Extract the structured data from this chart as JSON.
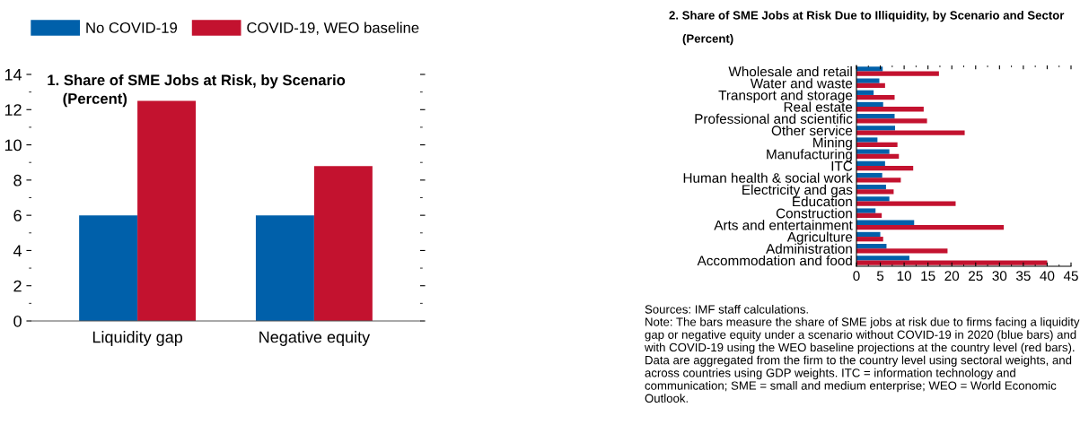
{
  "chart_data": [
    {
      "type": "bar",
      "title": "1. Share of SME Jobs at Risk, by Scenario",
      "subtitle": "(Percent)",
      "categories": [
        "Liquidity gap",
        "Negative equity"
      ],
      "series": [
        {
          "name": "No COVID-19",
          "color": "#0060aa",
          "values": [
            6.0,
            6.0
          ]
        },
        {
          "name": "COVID-19, WEO baseline",
          "color": "#c3122f",
          "values": [
            12.5,
            8.8
          ]
        }
      ],
      "ylim": [
        0,
        14
      ],
      "yticks": [
        0,
        2,
        4,
        6,
        8,
        10,
        12,
        14
      ],
      "grid": false,
      "legend": "top left"
    },
    {
      "type": "bar",
      "orientation": "horizontal",
      "title": "2. Share of SME Jobs at Risk Due to Illiquidity, by Scenario and Sector",
      "subtitle": "(Percent)",
      "categories": [
        "Wholesale and retail",
        "Water and waste",
        "Transport and storage",
        "Real estate",
        "Professional and scientific",
        "Other service",
        "Mining",
        "Manufacturing",
        "ITC",
        "Human health & social work",
        "Electricity and gas",
        "Education",
        "Construction",
        "Arts and entertainment",
        "Agriculture",
        "Administration",
        "Accommodation and food"
      ],
      "series": [
        {
          "color": "#0060aa",
          "values": [
            5.5,
            4.8,
            3.6,
            5.6,
            8.0,
            8.1,
            4.4,
            6.9,
            6.0,
            5.4,
            6.2,
            6.9,
            4.0,
            12.1,
            5.0,
            6.3,
            11.1
          ]
        },
        {
          "color": "#c3122f",
          "values": [
            17.3,
            6.0,
            8.0,
            14.1,
            14.8,
            22.7,
            8.6,
            8.9,
            11.9,
            9.3,
            7.8,
            20.8,
            5.3,
            30.9,
            5.6,
            19.1,
            40.0
          ]
        }
      ],
      "xlim": [
        0,
        45
      ],
      "xticks": [
        0,
        5,
        10,
        15,
        20,
        25,
        30,
        35,
        40,
        45
      ],
      "grid": false,
      "legend": false,
      "annotations": [
        "Sources: IMF staff calculations.",
        "Note: The bars measure the share of SME jobs at risk due to firms facing a liquidity gap or negative equity under a scenario without COVID-19 in 2020 (blue bars) and with COVID-19 using the WEO baseline projections at the country level (red bars). Data are aggregated from the firm to the country level using sectoral weights, and across countries using GDP weights. ITC = information technology and communication; SME = small and medium enterprise; WEO = World Economic Outlook."
      ]
    }
  ]
}
